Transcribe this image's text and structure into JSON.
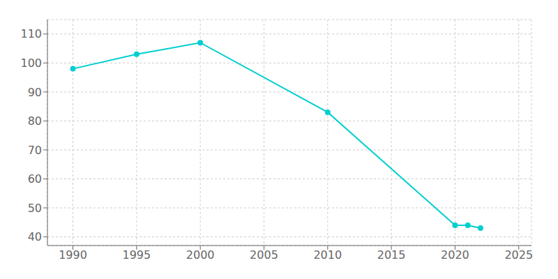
{
  "chart_data": {
    "type": "line",
    "x": [
      1990,
      1995,
      2000,
      2010,
      2020,
      2021,
      2022
    ],
    "values": [
      98,
      103,
      107,
      83,
      44,
      44,
      43
    ],
    "color": "#00CED1",
    "marker": "circle",
    "xlim": [
      1988,
      2026
    ],
    "ylim": [
      37,
      115
    ],
    "xticks": [
      1990,
      1995,
      2000,
      2005,
      2010,
      2015,
      2020,
      2025
    ],
    "yticks": [
      40,
      50,
      60,
      70,
      80,
      90,
      100,
      110
    ],
    "grid": true
  }
}
